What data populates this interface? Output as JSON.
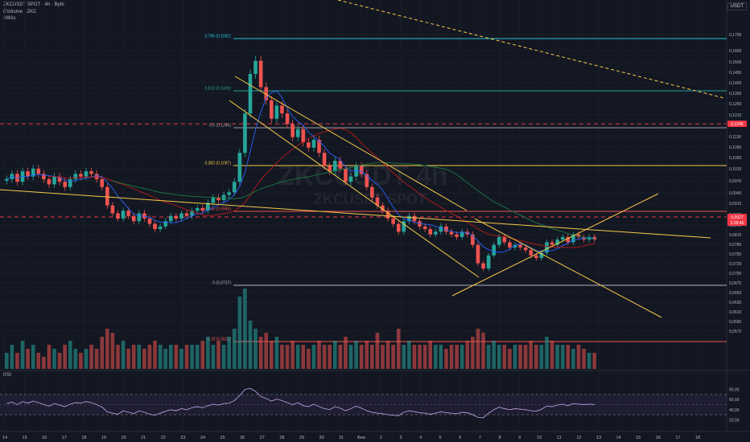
{
  "header": {
    "symbol_line": "ZKCUSDT SPOT · 4h · Bybit",
    "volume_line": "EVolume · ZKC",
    "ma_line": "3MAs",
    "currency_badge": "USDT"
  },
  "watermark": {
    "main": "ZKCUSDT 4h",
    "sub": "ZKCUSDT SPOT"
  },
  "rsi_label": "RSI",
  "chart_data": {
    "type": "candlestick",
    "price_ticks": [
      "0,1700",
      "0,1600",
      "0,1500",
      "0,1450",
      "0,1400",
      "0,1300",
      "0,1250",
      "0,1210",
      "0,1170",
      "0,1130",
      "0,1090",
      "0,1050",
      "0,1010",
      "0,0970",
      "0,0940",
      "0,0910",
      "0,0870",
      "0,0840",
      "0,0810",
      "0,0780",
      "0,0750",
      "0,0720",
      "0,0700",
      "0,0675",
      "0,0650",
      "0,0630",
      "0,0610",
      "0,0590",
      "0,0572"
    ],
    "x_ticks": [
      "14",
      "15",
      "16",
      "17",
      "18",
      "19",
      "20",
      "21",
      "22",
      "23",
      "24",
      "25",
      "26",
      "27",
      "28",
      "29",
      "30",
      "31",
      "Фев",
      "2",
      "3",
      "4",
      "5",
      "6",
      "7",
      "8",
      "9",
      "10",
      "11",
      "12",
      "13",
      "14",
      "15",
      "16",
      "17",
      "18"
    ],
    "rsi_ticks": [
      "80,00",
      "60,00",
      "40,00",
      "20,00"
    ],
    "fib_levels": [
      {
        "label": "0,786 (0,1681)",
        "color": "#26c6da"
      },
      {
        "label": "0,618 (0,1409)",
        "color": "#26a69a"
      },
      {
        "label": "0,5 (0,1246)",
        "color": "#9e9e9e"
      },
      {
        "label": "0,382 (0,1097)",
        "color": "#f7c948"
      },
      {
        "label": "0,236 (0,0945)",
        "color": "#ef5350"
      },
      {
        "label": "0 (0,0737)",
        "color": "#b2b5be"
      },
      {
        "label": "-0,18 (0,0611)",
        "color": "#ef5350"
      }
    ],
    "price_badges": [
      {
        "text": "0,1245",
        "color": "#f23645"
      },
      {
        "text": "0,0927",
        "color": "#f23645"
      },
      {
        "text": "2:29:46",
        "color": "#f23645"
      }
    ],
    "closes": [
      0.115,
      0.117,
      0.114,
      0.118,
      0.116,
      0.119,
      0.117,
      0.115,
      0.113,
      0.116,
      0.114,
      0.112,
      0.115,
      0.117,
      0.116,
      0.118,
      0.117,
      0.115,
      0.112,
      0.105,
      0.102,
      0.1,
      0.103,
      0.101,
      0.099,
      0.102,
      0.1,
      0.098,
      0.096,
      0.097,
      0.099,
      0.101,
      0.1,
      0.102,
      0.101,
      0.103,
      0.104,
      0.103,
      0.106,
      0.108,
      0.107,
      0.109,
      0.11,
      0.114,
      0.125,
      0.14,
      0.155,
      0.16,
      0.15,
      0.145,
      0.138,
      0.143,
      0.14,
      0.136,
      0.131,
      0.134,
      0.129,
      0.127,
      0.13,
      0.125,
      0.12,
      0.118,
      0.122,
      0.119,
      0.114,
      0.116,
      0.12,
      0.117,
      0.112,
      0.108,
      0.105,
      0.103,
      0.1,
      0.098,
      0.095,
      0.099,
      0.101,
      0.099,
      0.097,
      0.096,
      0.094,
      0.095,
      0.097,
      0.095,
      0.094,
      0.093,
      0.095,
      0.094,
      0.09,
      0.083,
      0.081,
      0.086,
      0.09,
      0.093,
      0.091,
      0.089,
      0.09,
      0.089,
      0.088,
      0.086,
      0.085,
      0.087,
      0.091,
      0.09,
      0.092,
      0.093,
      0.091,
      0.094,
      0.093,
      0.092,
      0.093,
      0.092
    ],
    "volumes": [
      0.2,
      0.3,
      0.2,
      0.35,
      0.25,
      0.3,
      0.2,
      0.15,
      0.3,
      0.25,
      0.2,
      0.3,
      0.35,
      0.25,
      0.2,
      0.25,
      0.3,
      0.25,
      0.4,
      0.5,
      0.45,
      0.3,
      0.35,
      0.25,
      0.3,
      0.3,
      0.25,
      0.3,
      0.35,
      0.3,
      0.25,
      0.3,
      0.3,
      0.25,
      0.3,
      0.3,
      0.3,
      0.35,
      0.4,
      0.3,
      0.35,
      0.3,
      0.4,
      0.5,
      0.9,
      1.0,
      0.6,
      0.5,
      0.4,
      0.45,
      0.35,
      0.4,
      0.3,
      0.3,
      0.35,
      0.3,
      0.3,
      0.25,
      0.3,
      0.35,
      0.3,
      0.3,
      0.35,
      0.3,
      0.4,
      0.3,
      0.35,
      0.3,
      0.35,
      0.3,
      0.45,
      0.3,
      0.35,
      0.3,
      0.5,
      0.3,
      0.35,
      0.3,
      0.3,
      0.3,
      0.35,
      0.3,
      0.3,
      0.25,
      0.3,
      0.3,
      0.3,
      0.35,
      0.4,
      0.5,
      0.45,
      0.3,
      0.35,
      0.3,
      0.3,
      0.25,
      0.3,
      0.3,
      0.3,
      0.35,
      0.3,
      0.3,
      0.4,
      0.35,
      0.3,
      0.3,
      0.3,
      0.25,
      0.3,
      0.25,
      0.2,
      0.2
    ],
    "rsi": [
      52,
      55,
      50,
      56,
      53,
      57,
      54,
      50,
      47,
      52,
      49,
      46,
      51,
      54,
      53,
      56,
      54,
      50,
      45,
      36,
      33,
      31,
      38,
      35,
      32,
      38,
      35,
      31,
      29,
      33,
      37,
      40,
      38,
      42,
      40,
      44,
      46,
      44,
      48,
      51,
      49,
      52,
      53,
      58,
      68,
      80,
      82,
      76,
      66,
      62,
      57,
      61,
      58,
      54,
      50,
      54,
      48,
      46,
      51,
      46,
      42,
      40,
      46,
      43,
      38,
      42,
      47,
      43,
      38,
      35,
      33,
      32,
      30,
      29,
      28,
      35,
      38,
      36,
      34,
      33,
      31,
      33,
      36,
      34,
      33,
      32,
      35,
      34,
      30,
      25,
      24,
      33,
      40,
      45,
      42,
      40,
      42,
      41,
      40,
      38,
      37,
      41,
      47,
      46,
      49,
      51,
      48,
      52,
      51,
      50,
      51,
      50
    ]
  }
}
